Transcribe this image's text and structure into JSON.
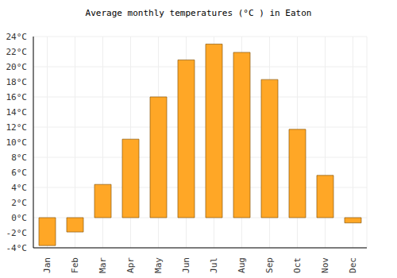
{
  "chart_data": {
    "type": "bar",
    "title": "Average monthly temperatures (°C ) in Eaton",
    "categories": [
      "Jan",
      "Feb",
      "Mar",
      "Apr",
      "May",
      "Jun",
      "Jul",
      "Aug",
      "Sep",
      "Oct",
      "Nov",
      "Dec"
    ],
    "values": [
      -3.7,
      -1.9,
      4.4,
      10.4,
      16.0,
      20.9,
      23.0,
      21.9,
      18.3,
      11.7,
      5.6,
      -0.7
    ],
    "color": "#ffa726",
    "ylim": [
      -4,
      24
    ],
    "yticks": [
      {
        "value": -4,
        "label": "-4°C"
      },
      {
        "value": -2,
        "label": "-2°C"
      },
      {
        "value": 0,
        "label": "0°C"
      },
      {
        "value": 2,
        "label": "2°C"
      },
      {
        "value": 4,
        "label": "4°C"
      },
      {
        "value": 6,
        "label": "6°C"
      },
      {
        "value": 8,
        "label": "8°C"
      },
      {
        "value": 10,
        "label": "10°C"
      },
      {
        "value": 12,
        "label": "12°C"
      },
      {
        "value": 14,
        "label": "14°C"
      },
      {
        "value": 16,
        "label": "16°C"
      },
      {
        "value": 18,
        "label": "18°C"
      },
      {
        "value": 20,
        "label": "20°C"
      },
      {
        "value": 22,
        "label": "22°C"
      },
      {
        "value": 24,
        "label": "24°C"
      }
    ],
    "grid": true
  }
}
